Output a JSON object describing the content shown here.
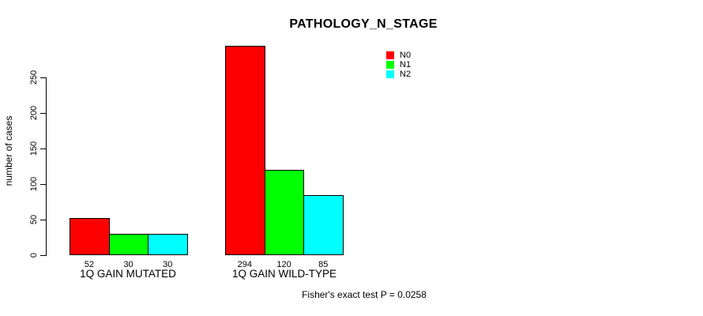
{
  "chart_data": {
    "type": "bar",
    "title": "PATHOLOGY_N_STAGE",
    "ylabel": "number of cases",
    "categories": [
      "1Q GAIN MUTATED",
      "1Q GAIN WILD-TYPE"
    ],
    "series": [
      {
        "name": "N0",
        "color": "#ff0000",
        "values": [
          52,
          294
        ]
      },
      {
        "name": "N1",
        "color": "#00ff00",
        "values": [
          30,
          120
        ]
      },
      {
        "name": "N2",
        "color": "#00ffff",
        "values": [
          30,
          85
        ]
      }
    ],
    "bar_value_labels": [
      [
        "52",
        "30",
        "30"
      ],
      [
        "294",
        "120",
        "85"
      ]
    ],
    "yticks": [
      0,
      50,
      100,
      150,
      200,
      250
    ],
    "ylim": [
      0,
      250
    ],
    "grid": false,
    "legend_position": "top-right",
    "annotation": "Fisher's exact test P = 0.0258"
  }
}
